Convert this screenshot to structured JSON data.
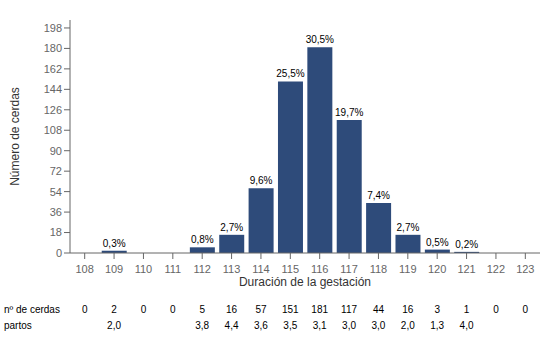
{
  "chart_data": {
    "type": "bar",
    "categories": [
      108,
      109,
      110,
      111,
      112,
      113,
      114,
      115,
      116,
      117,
      118,
      119,
      120,
      121,
      122,
      123
    ],
    "values": [
      0,
      2,
      0,
      0,
      5,
      16,
      57,
      151,
      181,
      117,
      44,
      16,
      3,
      1,
      0,
      0
    ],
    "color": "#2E4B7A",
    "xlabel": "Duración de la gestación",
    "ylabel": "Número de cerdas",
    "ylim": [
      0,
      205
    ],
    "yticks": [
      0,
      18,
      36,
      54,
      72,
      90,
      108,
      126,
      144,
      162,
      180,
      198
    ],
    "grid": false,
    "percentages": [
      null,
      0.3,
      null,
      null,
      0.8,
      2.7,
      9.6,
      25.5,
      30.5,
      19.7,
      7.4,
      2.7,
      0.5,
      0.2,
      null,
      null
    ],
    "percentage_labels": [
      null,
      "0,3%",
      null,
      null,
      "0,8%",
      "2,7%",
      "9,6%",
      "25,5%",
      "30,5%",
      "19,7%",
      "7,4%",
      "2,7%",
      "0,5%",
      "0,2%",
      null,
      null
    ],
    "table": [
      {
        "label": "nº de cerdas",
        "values": [
          0,
          2,
          0,
          0,
          5,
          16,
          57,
          151,
          181,
          117,
          44,
          16,
          3,
          1,
          0,
          0
        ]
      },
      {
        "label": "partos",
        "values": [
          null,
          2.0,
          null,
          null,
          3.8,
          4.4,
          3.6,
          3.5,
          3.1,
          3.0,
          3.0,
          2.0,
          1.3,
          4.0,
          null,
          null
        ],
        "value_labels": [
          null,
          "2,0",
          null,
          null,
          "3,8",
          "4,4",
          "3,6",
          "3,5",
          "3,1",
          "3,0",
          "3,0",
          "2,0",
          "1,3",
          "4,0",
          null,
          null
        ]
      }
    ]
  }
}
